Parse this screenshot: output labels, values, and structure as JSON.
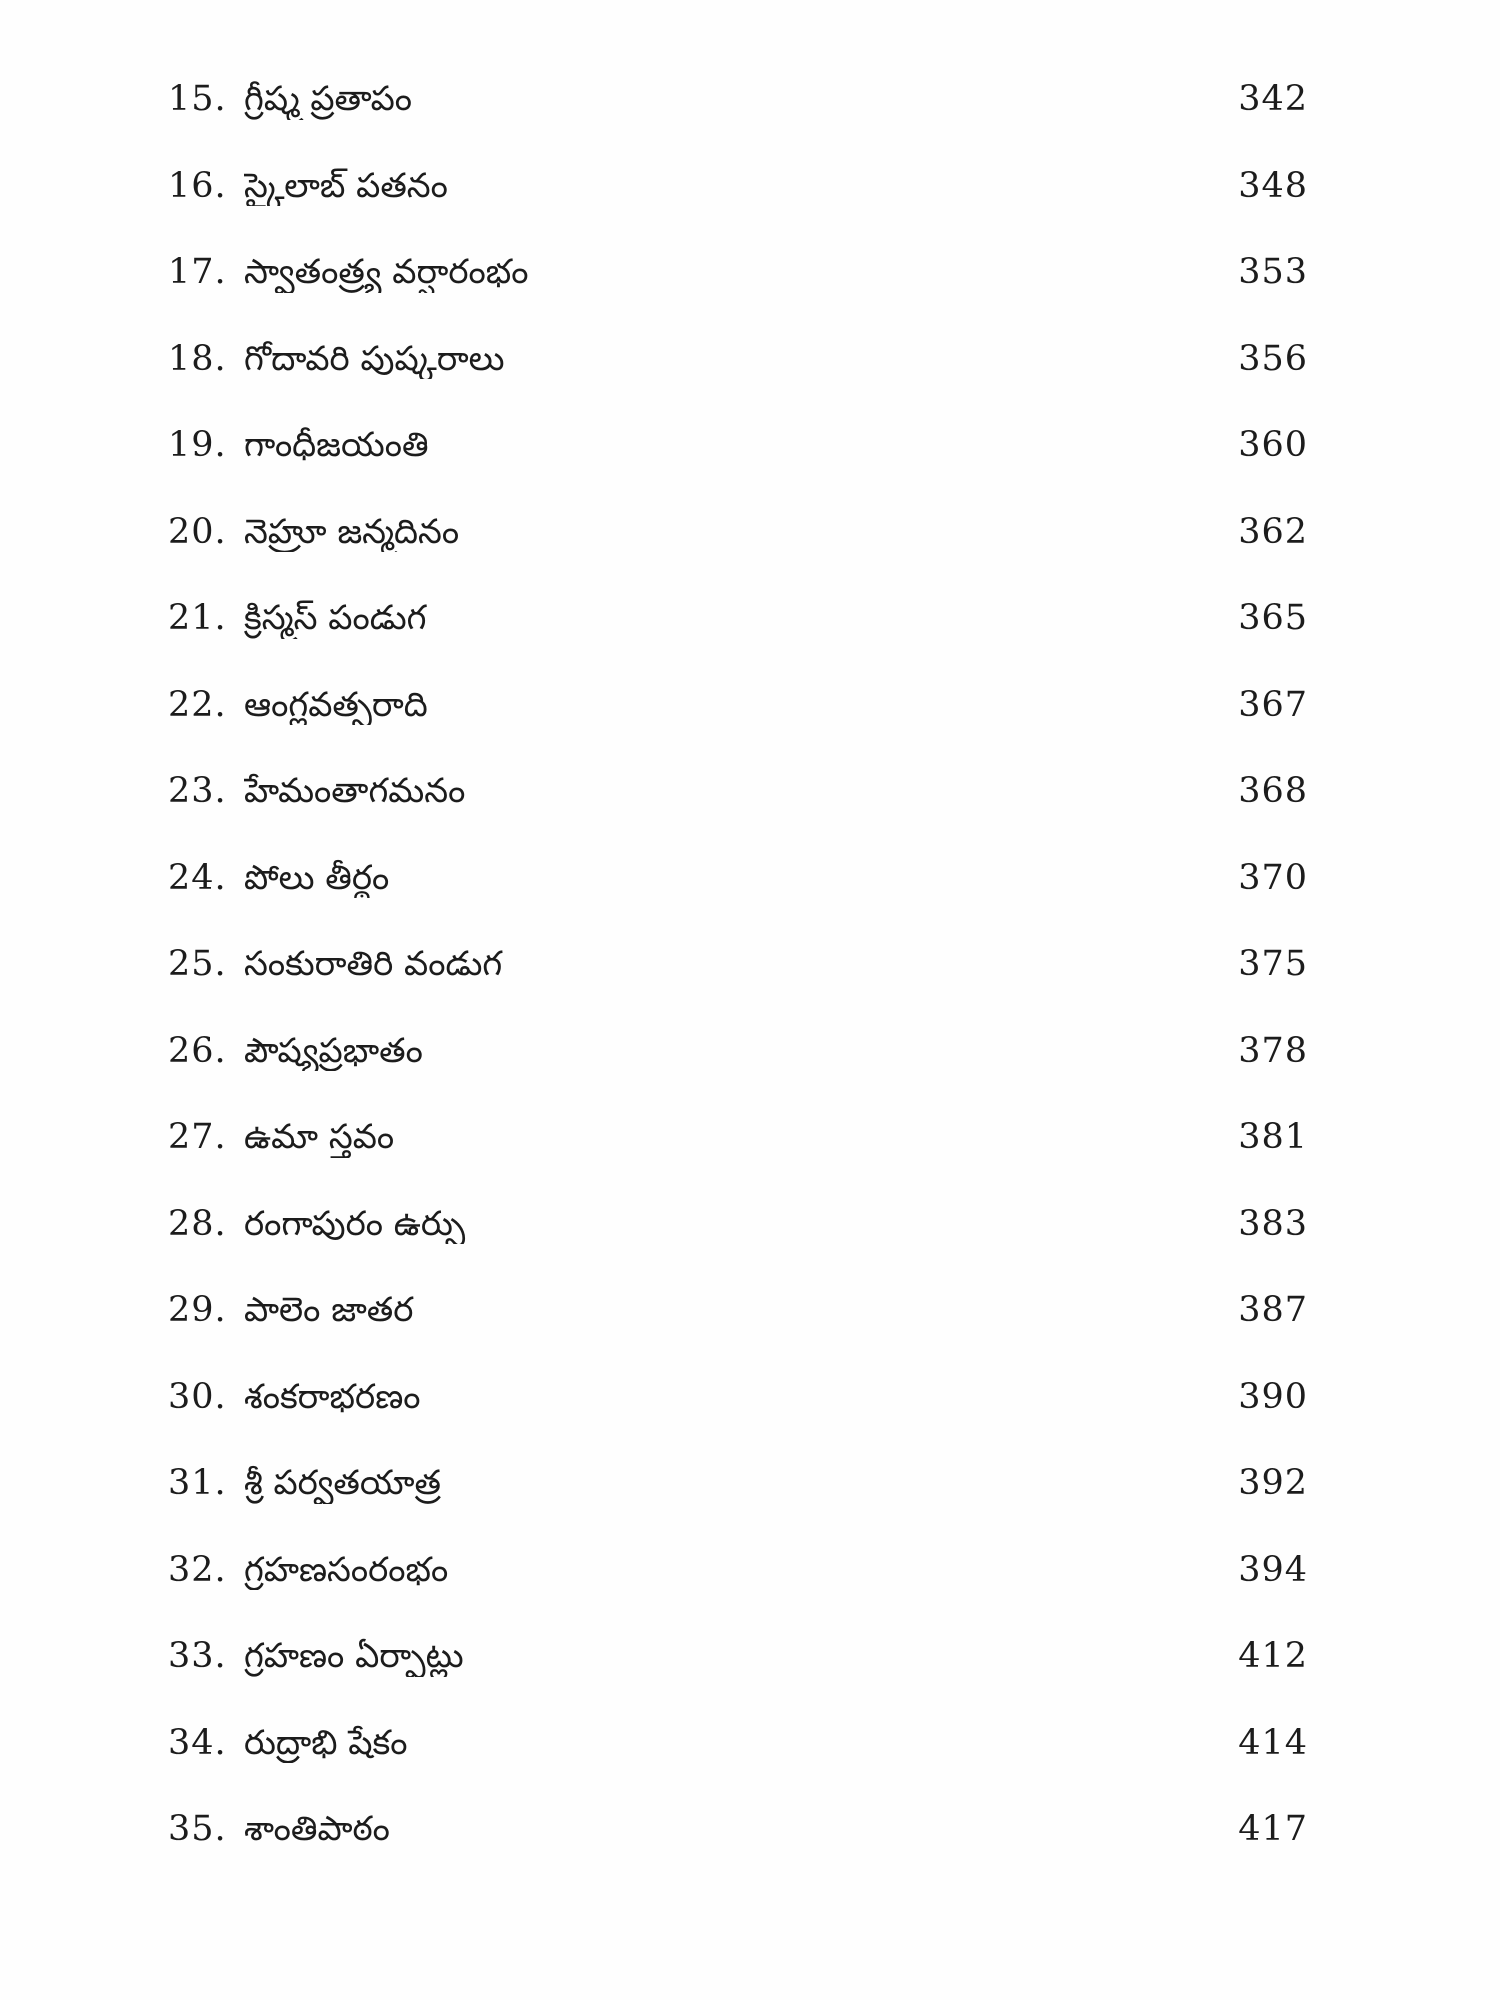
{
  "page": {
    "kind": "book-table-of-contents",
    "language": "Telugu",
    "background_color": "#fefefe",
    "text_color": "#1c1c1c"
  },
  "toc": {
    "entries": [
      {
        "num": "15.",
        "title": "గ్రీష్మ ప్రతాపం",
        "page": "342"
      },
      {
        "num": "16.",
        "title": "స్కైలాబ్ పతనం",
        "page": "348"
      },
      {
        "num": "17.",
        "title": "స్వాతంత్ర్య వర్షారంభం",
        "page": "353"
      },
      {
        "num": "18.",
        "title": "గోదావరి పుష్కరాలు",
        "page": "356"
      },
      {
        "num": "19.",
        "title": "గాంధీజయంతి",
        "page": "360"
      },
      {
        "num": "20.",
        "title": "నెహ్రూ జన్మదినం",
        "page": "362"
      },
      {
        "num": "21.",
        "title": "క్రిస్మస్ పండుగ",
        "page": "365"
      },
      {
        "num": "22.",
        "title": "ఆంగ్లవత్సరాది",
        "page": "367"
      },
      {
        "num": "23.",
        "title": "హేమంతాగమనం",
        "page": "368"
      },
      {
        "num": "24.",
        "title": "పోలు తీర్థం",
        "page": "370"
      },
      {
        "num": "25.",
        "title": "సంకురాతిరి వండుగ",
        "page": "375"
      },
      {
        "num": "26.",
        "title": "పౌష్యప్రభాతం",
        "page": "378"
      },
      {
        "num": "27.",
        "title": "ఉమా స్తవం",
        "page": "381"
      },
      {
        "num": "28.",
        "title": "రంగాపురం ఉర్సు",
        "page": "383"
      },
      {
        "num": "29.",
        "title": "పాలెం జాతర",
        "page": "387"
      },
      {
        "num": "30.",
        "title": "శంకరాభరణం",
        "page": "390"
      },
      {
        "num": "31.",
        "title": "శ్రీ పర్వతయాత్ర",
        "page": "392"
      },
      {
        "num": "32.",
        "title": "గ్రహణసంరంభం",
        "page": "394"
      },
      {
        "num": "33.",
        "title": "గ్రహణం ఏర్పాట్లు",
        "page": "412"
      },
      {
        "num": "34.",
        "title": "రుద్రాభి షేకం",
        "page": "414"
      },
      {
        "num": "35.",
        "title": "శాంతిపాఠం",
        "page": "417"
      }
    ]
  }
}
